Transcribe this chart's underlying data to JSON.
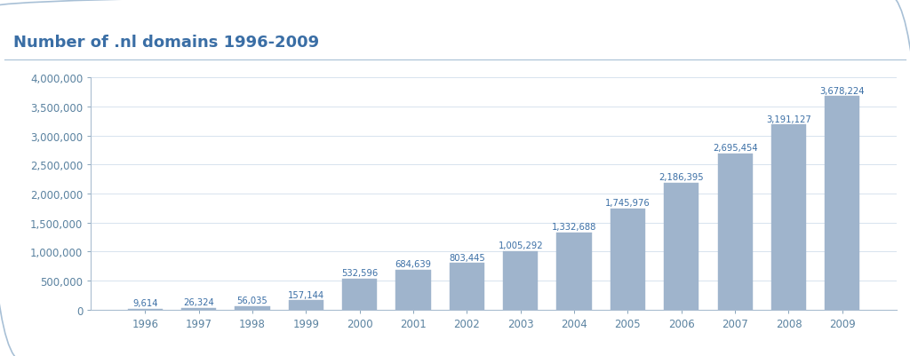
{
  "title": "Number of .nl domains 1996-2009",
  "categories": [
    "1996",
    "1997",
    "1998",
    "1999",
    "2000",
    "2001",
    "2002",
    "2003",
    "2004",
    "2005",
    "2006",
    "2007",
    "2008",
    "2009"
  ],
  "values": [
    9614,
    26324,
    56035,
    157144,
    532596,
    684639,
    803445,
    1005292,
    1332688,
    1745976,
    2186395,
    2695454,
    3191127,
    3678224
  ],
  "labels": [
    "9,614",
    "26,324",
    "56,035",
    "157,144",
    "532,596",
    "684,639",
    "803,445",
    "1,005,292",
    "1,332,688",
    "1,745,976",
    "2,186,395",
    "2,695,454",
    "3,191,127",
    "3,678,224"
  ],
  "bar_color": "#9fb4cc",
  "bar_edge_color": "#9fb4cc",
  "title_color": "#3a6ea5",
  "label_color": "#3a6ea5",
  "axis_color": "#aabdd0",
  "tick_color": "#5a82a0",
  "background_color": "#ffffff",
  "plot_bg_color": "#ffffff",
  "border_color": "#a8c0d6",
  "ylim": [
    0,
    4000000
  ],
  "yticks": [
    0,
    500000,
    1000000,
    1500000,
    2000000,
    2500000,
    3000000,
    3500000,
    4000000
  ],
  "title_fontsize": 13,
  "label_fontsize": 7.2,
  "tick_fontsize": 8.5
}
